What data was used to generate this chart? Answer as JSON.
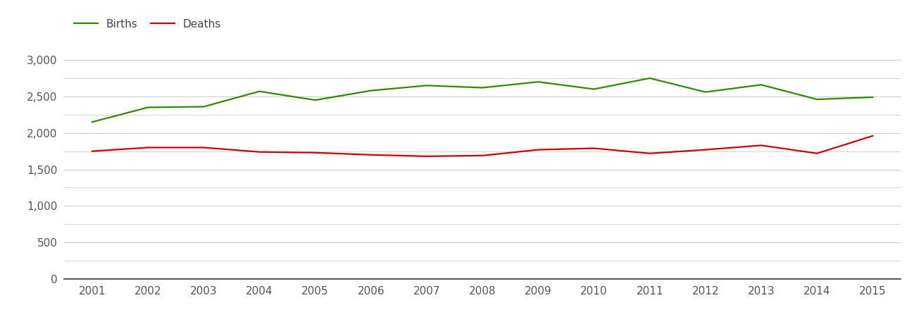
{
  "years": [
    2001,
    2002,
    2003,
    2004,
    2005,
    2006,
    2007,
    2008,
    2009,
    2010,
    2011,
    2012,
    2013,
    2014,
    2015
  ],
  "births": [
    2150,
    2350,
    2360,
    2570,
    2450,
    2580,
    2650,
    2620,
    2700,
    2600,
    2750,
    2560,
    2660,
    2460,
    2490
  ],
  "deaths": [
    1750,
    1800,
    1800,
    1740,
    1730,
    1700,
    1680,
    1690,
    1770,
    1790,
    1720,
    1770,
    1830,
    1720,
    1960
  ],
  "births_color": "#2e8b00",
  "deaths_color": "#cc0000",
  "background_color": "#ffffff",
  "grid_color": "#cccccc",
  "bottom_spine_color": "#333333",
  "ylim": [
    0,
    3300
  ],
  "yticks": [
    0,
    500,
    1000,
    1500,
    2000,
    2500,
    3000
  ],
  "minor_yticks": [
    250,
    750,
    1250,
    1750,
    2250,
    2750
  ],
  "line_width": 1.6,
  "legend_births": "Births",
  "legend_deaths": "Deaths",
  "tick_label_color": "#555555",
  "legend_text_color": "#444444",
  "tick_fontsize": 11,
  "legend_fontsize": 11
}
